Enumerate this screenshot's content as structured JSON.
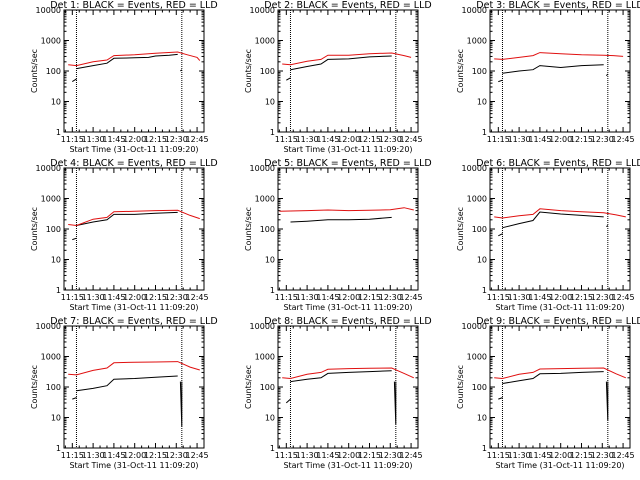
{
  "colors": {
    "events": "#000000",
    "lld": "#e01010",
    "background": "#ffffff",
    "axes": "#000000"
  },
  "chart_data": [
    {
      "type": "line",
      "title": "Det 1: BLACK = Events, RED = LLD",
      "xlabel": "Start Time (31-Oct-11 11:09:20)",
      "ylabel": "Counts/sec",
      "yscale": "log",
      "ylim": [
        1,
        10000
      ],
      "xlim": [
        "11:09",
        "12:50"
      ],
      "xticks": [
        "11:15",
        "11:30",
        "11:45",
        "12:00",
        "12:15",
        "12:30",
        "12:45"
      ],
      "yticks": [
        "1",
        "10",
        "100",
        "1000",
        "10000"
      ],
      "markers": [
        "11:18",
        "12:34"
      ],
      "series": [
        {
          "name": "Events",
          "color": "#000000",
          "segments": [
            {
              "x": [
                "11:15",
                "11:18"
              ],
              "y": [
                45,
                55
              ]
            },
            {
              "x": [
                "11:18",
                "11:30",
                "11:40",
                "11:45",
                "12:00",
                "12:10",
                "12:15",
                "12:25",
                "12:31"
              ],
              "y": [
                120,
                150,
                180,
                260,
                270,
                280,
                310,
                330,
                350
              ]
            },
            {
              "x": [
                "12:33",
                "12:34"
              ],
              "y": [
                100,
                110
              ]
            }
          ]
        },
        {
          "name": "LLD",
          "color": "#e01010",
          "segments": [
            {
              "x": [
                "11:12",
                "11:18",
                "11:30",
                "11:40",
                "11:45",
                "12:00",
                "12:15",
                "12:31",
                "12:38",
                "12:45",
                "12:47"
              ],
              "y": [
                160,
                150,
                200,
                230,
                320,
                340,
                380,
                420,
                340,
                280,
                220
              ]
            }
          ]
        }
      ]
    },
    {
      "type": "line",
      "title": "Det 2: BLACK = Events, RED = LLD",
      "xlabel": "Start Time (31-Oct-11 11:09:20)",
      "ylabel": "Counts/sec",
      "yscale": "log",
      "ylim": [
        1,
        10000
      ],
      "xlim": [
        "11:09",
        "12:50"
      ],
      "xticks": [
        "11:15",
        "11:30",
        "11:45",
        "12:00",
        "12:15",
        "12:30",
        "12:45"
      ],
      "yticks": [
        "1",
        "10",
        "100",
        "1000",
        "10000"
      ],
      "markers": [
        "11:18",
        "12:34"
      ],
      "series": [
        {
          "name": "Events",
          "color": "#000000",
          "segments": [
            {
              "x": [
                "11:15",
                "11:18"
              ],
              "y": [
                50,
                60
              ]
            },
            {
              "x": [
                "11:18",
                "11:30",
                "11:40",
                "11:45",
                "12:00",
                "12:15",
                "12:31"
              ],
              "y": [
                110,
                140,
                170,
                240,
                250,
                290,
                310
              ]
            }
          ]
        },
        {
          "name": "LLD",
          "color": "#e01010",
          "segments": [
            {
              "x": [
                "11:12",
                "11:18",
                "11:30",
                "11:40",
                "11:45",
                "12:00",
                "12:15",
                "12:31",
                "12:40",
                "12:45"
              ],
              "y": [
                170,
                160,
                210,
                240,
                330,
                330,
                370,
                390,
                320,
                280
              ]
            }
          ]
        }
      ]
    },
    {
      "type": "line",
      "title": "Det 3: BLACK = Events, RED = LLD",
      "xlabel": "",
      "ylabel": "Counts/sec",
      "yscale": "log",
      "ylim": [
        1,
        10000
      ],
      "xlim": [
        "11:09",
        "12:50"
      ],
      "xticks": [
        "11:15",
        "11:30",
        "11:45",
        "12:00",
        "12:15",
        "12:30",
        "12:45"
      ],
      "yticks": [
        "1",
        "10",
        "100",
        "1000",
        "10000"
      ],
      "markers": [
        "11:18",
        "12:34"
      ],
      "series": [
        {
          "name": "Events",
          "color": "#000000",
          "segments": [
            {
              "x": [
                "11:15",
                "11:18"
              ],
              "y": [
                45,
                50
              ]
            },
            {
              "x": [
                "11:18",
                "11:30",
                "11:40",
                "11:45",
                "12:00",
                "12:15",
                "12:31"
              ],
              "y": [
                85,
                100,
                110,
                150,
                130,
                150,
                160
              ]
            },
            {
              "x": [
                "12:33",
                "12:34"
              ],
              "y": [
                70,
                80
              ]
            }
          ]
        },
        {
          "name": "LLD",
          "color": "#e01010",
          "segments": [
            {
              "x": [
                "11:12",
                "11:18",
                "11:30",
                "11:40",
                "11:45",
                "12:00",
                "12:15",
                "12:31",
                "12:38",
                "12:45"
              ],
              "y": [
                250,
                240,
                280,
                320,
                400,
                370,
                340,
                330,
                320,
                300
              ]
            }
          ]
        }
      ]
    },
    {
      "type": "line",
      "title": "Det 4: BLACK = Events, RED = LLD",
      "xlabel": "Start Time (31-Oct-11 11:09:20)",
      "ylabel": "Counts/sec",
      "yscale": "log",
      "ylim": [
        1,
        10000
      ],
      "xlim": [
        "11:09",
        "12:50"
      ],
      "xticks": [
        "11:15",
        "11:30",
        "11:45",
        "12:00",
        "12:15",
        "12:30",
        "12:45"
      ],
      "yticks": [
        "1",
        "10",
        "100",
        "1000",
        "10000"
      ],
      "markers": [
        "11:18",
        "12:34"
      ],
      "series": [
        {
          "name": "Events",
          "color": "#000000",
          "segments": [
            {
              "x": [
                "11:15",
                "11:18"
              ],
              "y": [
                45,
                50
              ]
            },
            {
              "x": [
                "11:18",
                "11:30",
                "11:40",
                "11:45",
                "12:00",
                "12:15",
                "12:31"
              ],
              "y": [
                130,
                170,
                200,
                300,
                300,
                330,
                350
              ]
            },
            {
              "x": [
                "12:33",
                "12:34"
              ],
              "y": [
                100,
                105
              ]
            }
          ]
        },
        {
          "name": "LLD",
          "color": "#e01010",
          "segments": [
            {
              "x": [
                "11:12",
                "11:18",
                "11:30",
                "11:40",
                "11:45",
                "12:00",
                "12:15",
                "12:31",
                "12:40",
                "12:47"
              ],
              "y": [
                140,
                130,
                210,
                240,
                370,
                380,
                400,
                410,
                280,
                220
              ]
            }
          ]
        }
      ]
    },
    {
      "type": "line",
      "title": "Det 5: BLACK = Events, RED = LLD",
      "xlabel": "Start Time (31-Oct-11 11:09:20)",
      "ylabel": "Counts/sec",
      "yscale": "log",
      "ylim": [
        1,
        10000
      ],
      "xlim": [
        "11:09",
        "12:50"
      ],
      "xticks": [
        "11:15",
        "11:30",
        "11:45",
        "12:00",
        "12:15",
        "12:30",
        "12:45"
      ],
      "yticks": [
        "1",
        "10",
        "100",
        "1000",
        "10000"
      ],
      "markers": [],
      "series": [
        {
          "name": "Events",
          "color": "#000000",
          "segments": [
            {
              "x": [
                "11:18",
                "11:30",
                "11:45",
                "12:00",
                "12:15",
                "12:31"
              ],
              "y": [
                170,
                180,
                200,
                200,
                210,
                240
              ]
            }
          ]
        },
        {
          "name": "LLD",
          "color": "#e01010",
          "segments": [
            {
              "x": [
                "11:10",
                "11:30",
                "11:45",
                "12:00",
                "12:15",
                "12:30",
                "12:40",
                "12:47"
              ],
              "y": [
                380,
                400,
                420,
                400,
                410,
                430,
                500,
                420
              ]
            }
          ]
        }
      ]
    },
    {
      "type": "line",
      "title": "Det 6: BLACK = Events, RED = LLD",
      "xlabel": "Start Time (31-Oct-11 11:09:20)",
      "ylabel": "Counts/sec",
      "yscale": "log",
      "ylim": [
        1,
        10000
      ],
      "xlim": [
        "11:09",
        "12:50"
      ],
      "xticks": [
        "11:15",
        "11:30",
        "11:45",
        "12:00",
        "12:15",
        "12:30",
        "12:45"
      ],
      "yticks": [
        "1",
        "10",
        "100",
        "1000",
        "10000"
      ],
      "markers": [
        "11:18",
        "12:34"
      ],
      "series": [
        {
          "name": "Events",
          "color": "#000000",
          "segments": [
            {
              "x": [
                "11:15",
                "11:18"
              ],
              "y": [
                60,
                70
              ]
            },
            {
              "x": [
                "11:18",
                "11:30",
                "11:40",
                "11:45",
                "12:00",
                "12:15",
                "12:31"
              ],
              "y": [
                110,
                150,
                190,
                360,
                310,
                280,
                250
              ]
            },
            {
              "x": [
                "12:33",
                "12:34"
              ],
              "y": [
                120,
                130
              ]
            }
          ]
        },
        {
          "name": "LLD",
          "color": "#e01010",
          "segments": [
            {
              "x": [
                "11:12",
                "11:18",
                "11:30",
                "11:40",
                "11:45",
                "12:00",
                "12:15",
                "12:31",
                "12:40",
                "12:47"
              ],
              "y": [
                250,
                230,
                270,
                300,
                460,
                400,
                370,
                340,
                290,
                250
              ]
            }
          ]
        }
      ]
    },
    {
      "type": "line",
      "title": "Det 7: BLACK = Events, RED = LLD",
      "xlabel": "Start Time (31-Oct-11 11:09:20)",
      "ylabel": "Counts/sec",
      "yscale": "log",
      "ylim": [
        1,
        10000
      ],
      "xlim": [
        "11:09",
        "12:50"
      ],
      "xticks": [
        "11:15",
        "11:30",
        "11:45",
        "12:00",
        "12:15",
        "12:30",
        "12:45"
      ],
      "yticks": [
        "1",
        "10",
        "100",
        "1000",
        "10000"
      ],
      "markers": [
        "11:18",
        "12:34"
      ],
      "series": [
        {
          "name": "Events",
          "color": "#000000",
          "segments": [
            {
              "x": [
                "11:15",
                "11:18"
              ],
              "y": [
                40,
                45
              ]
            },
            {
              "x": [
                "11:18",
                "11:30",
                "11:40",
                "11:45",
                "12:00",
                "12:15",
                "12:31"
              ],
              "y": [
                75,
                90,
                110,
                180,
                190,
                210,
                230
              ]
            },
            {
              "x": [
                "12:33",
                "12:34",
                "12:34"
              ],
              "y": [
                150,
                5,
                150
              ]
            }
          ]
        },
        {
          "name": "LLD",
          "color": "#e01010",
          "segments": [
            {
              "x": [
                "11:12",
                "11:18",
                "11:30",
                "11:40",
                "11:45",
                "12:00",
                "12:15",
                "12:31",
                "12:40",
                "12:47"
              ],
              "y": [
                260,
                250,
                350,
                420,
                620,
                650,
                660,
                680,
                450,
                360
              ]
            }
          ]
        }
      ]
    },
    {
      "type": "line",
      "title": "Det 8: BLACK = Events, RED = LLD",
      "xlabel": "Start Time (31-Oct-11 11:09:20)",
      "ylabel": "Counts/sec",
      "yscale": "log",
      "ylim": [
        1,
        10000
      ],
      "xlim": [
        "11:09",
        "12:50"
      ],
      "xticks": [
        "11:15",
        "11:30",
        "11:45",
        "12:00",
        "12:15",
        "12:30",
        "12:45"
      ],
      "yticks": [
        "1",
        "10",
        "100",
        "1000",
        "10000"
      ],
      "markers": [
        "11:18",
        "12:34"
      ],
      "series": [
        {
          "name": "Events",
          "color": "#000000",
          "segments": [
            {
              "x": [
                "11:15",
                "11:18"
              ],
              "y": [
                30,
                40
              ]
            },
            {
              "x": [
                "11:18",
                "11:30",
                "11:40",
                "11:45",
                "12:00",
                "12:15",
                "12:31"
              ],
              "y": [
                150,
                180,
                200,
                280,
                300,
                320,
                340
              ]
            },
            {
              "x": [
                "12:33",
                "12:34",
                "12:34"
              ],
              "y": [
                150,
                6,
                150
              ]
            }
          ]
        },
        {
          "name": "LLD",
          "color": "#e01010",
          "segments": [
            {
              "x": [
                "11:12",
                "11:18",
                "11:30",
                "11:40",
                "11:45",
                "12:00",
                "12:15",
                "12:31",
                "12:40",
                "12:47"
              ],
              "y": [
                200,
                190,
                260,
                300,
                380,
                400,
                410,
                420,
                280,
                200
              ]
            }
          ]
        }
      ]
    },
    {
      "type": "line",
      "title": "Det 9: BLACK = Events, RED = LLD",
      "xlabel": "Start Time (31-Oct-11 11:09:20)",
      "ylabel": "Counts/sec",
      "yscale": "log",
      "ylim": [
        1,
        10000
      ],
      "xlim": [
        "11:09",
        "12:50"
      ],
      "xticks": [
        "11:15",
        "11:30",
        "11:45",
        "12:00",
        "12:15",
        "12:30",
        "12:45"
      ],
      "yticks": [
        "1",
        "10",
        "100",
        "1000",
        "10000"
      ],
      "markers": [
        "11:18",
        "12:34"
      ],
      "series": [
        {
          "name": "Events",
          "color": "#000000",
          "segments": [
            {
              "x": [
                "11:15",
                "11:18"
              ],
              "y": [
                40,
                45
              ]
            },
            {
              "x": [
                "11:18",
                "11:30",
                "11:40",
                "11:45",
                "12:00",
                "12:15",
                "12:31"
              ],
              "y": [
                130,
                160,
                190,
                270,
                280,
                300,
                320
              ]
            },
            {
              "x": [
                "12:33",
                "12:34",
                "12:34"
              ],
              "y": [
                150,
                8,
                150
              ]
            }
          ]
        },
        {
          "name": "LLD",
          "color": "#e01010",
          "segments": [
            {
              "x": [
                "11:12",
                "11:18",
                "11:30",
                "11:40",
                "11:45",
                "12:00",
                "12:15",
                "12:31",
                "12:40",
                "12:47"
              ],
              "y": [
                200,
                190,
                260,
                300,
                390,
                400,
                410,
                420,
                270,
                200
              ]
            }
          ]
        }
      ]
    }
  ]
}
